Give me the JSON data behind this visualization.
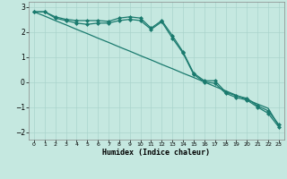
{
  "xlabel": "Humidex (Indice chaleur)",
  "x": [
    0,
    1,
    2,
    3,
    4,
    5,
    6,
    7,
    8,
    9,
    10,
    11,
    12,
    13,
    14,
    15,
    16,
    17,
    18,
    19,
    20,
    21,
    22,
    23
  ],
  "line1": [
    2.8,
    2.8,
    2.6,
    2.5,
    2.45,
    2.45,
    2.45,
    2.42,
    2.55,
    2.6,
    2.55,
    2.15,
    2.45,
    1.85,
    1.2,
    0.35,
    0.05,
    0.05,
    -0.4,
    -0.55,
    -0.65,
    -0.95,
    -1.15,
    -1.7
  ],
  "line2": [
    2.8,
    2.8,
    2.55,
    2.45,
    2.35,
    2.3,
    2.35,
    2.35,
    2.45,
    2.5,
    2.45,
    2.1,
    2.4,
    1.75,
    1.15,
    0.3,
    0.0,
    -0.05,
    -0.45,
    -0.62,
    -0.72,
    -1.0,
    -1.25,
    -1.8
  ],
  "line3": [
    2.8,
    2.63,
    2.45,
    2.28,
    2.1,
    1.93,
    1.75,
    1.58,
    1.4,
    1.23,
    1.05,
    0.88,
    0.7,
    0.53,
    0.35,
    0.18,
    0.0,
    -0.18,
    -0.35,
    -0.53,
    -0.7,
    -0.88,
    -1.05,
    -1.75
  ],
  "ylim": [
    -2.3,
    3.2
  ],
  "xlim": [
    -0.5,
    23.5
  ],
  "yticks": [
    -2,
    -1,
    0,
    1,
    2,
    3
  ],
  "xticks": [
    0,
    1,
    2,
    3,
    4,
    5,
    6,
    7,
    8,
    9,
    10,
    11,
    12,
    13,
    14,
    15,
    16,
    17,
    18,
    19,
    20,
    21,
    22,
    23
  ],
  "line_color": "#1a7a6e",
  "bg_color": "#c5e8e0",
  "grid_color": "#aad4cc",
  "fig_bg": "#c5e8e0"
}
